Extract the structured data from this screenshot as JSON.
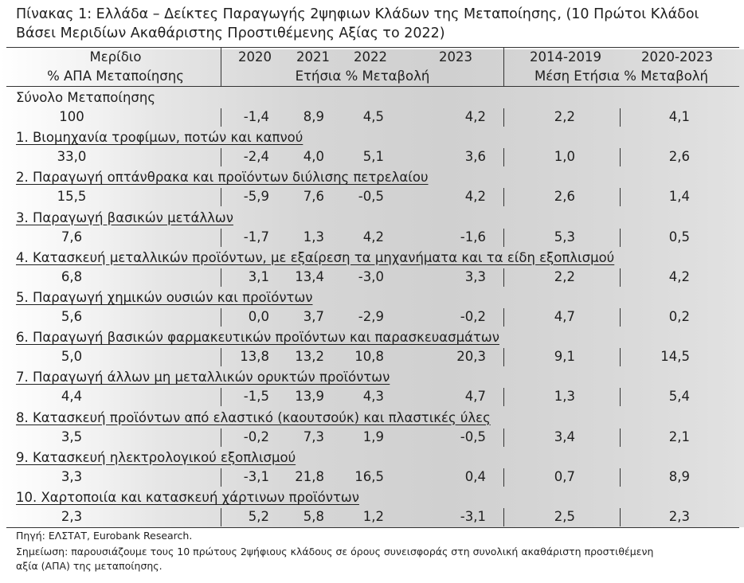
{
  "title": "Πίνακας 1: Ελλάδα – Δείκτες Παραγωγής 2ψηφιων Κλάδων της Μεταποίησης, (10 Πρώτοι Κλάδοι Βάσει Μεριδίων Ακαθάριστης Προστιθέμενης Αξίας το 2022)",
  "header": {
    "share_line1": "Μερίδιο",
    "share_line2": "% ΑΠΑ Μεταποίησης",
    "years": [
      "2020",
      "2021",
      "2022",
      "2023"
    ],
    "annual_label": "Ετήσια % Μεταβολή",
    "period1": "2014-2019",
    "period2": "2020-2023",
    "period_label": "Μέση Ετήσια % Μεταβολή"
  },
  "rows": [
    {
      "name": "Σύνολο Μεταποίησης",
      "share": "100",
      "y2020": "-1,4",
      "y2021": "8,9",
      "y2022": "4,5",
      "y2023": "4,2",
      "p1": "2,2",
      "p2": "4,1"
    },
    {
      "name": "1. Βιομηχανία τροφίμων, ποτών και καπνού",
      "share": "33,0",
      "y2020": "-2,4",
      "y2021": "4,0",
      "y2022": "5,1",
      "y2023": "3,6",
      "p1": "1,0",
      "p2": "2,6"
    },
    {
      "name": "2. Παραγωγή οπτάνθρακα και προϊόντων διύλισης πετρελαίου",
      "share": "15,5",
      "y2020": "-5,9",
      "y2021": "7,6",
      "y2022": "-0,5",
      "y2023": "4,2",
      "p1": "2,6",
      "p2": "1,4"
    },
    {
      "name": "3. Παραγωγή βασικών μετάλλων",
      "share": "7,6",
      "y2020": "-1,7",
      "y2021": "1,3",
      "y2022": "4,2",
      "y2023": "-1,6",
      "p1": "5,3",
      "p2": "0,5"
    },
    {
      "name": "4. Κατασκευή μεταλλικών προϊόντων, με εξαίρεση τα μηχανήματα και τα είδη εξοπλισμού",
      "share": "6,8",
      "y2020": "3,1",
      "y2021": "13,4",
      "y2022": "-3,0",
      "y2023": "3,3",
      "p1": "2,2",
      "p2": "4,2"
    },
    {
      "name": "5. Παραγωγή χημικών ουσιών και προϊόντων",
      "share": "5,6",
      "y2020": "0,0",
      "y2021": "3,7",
      "y2022": "-2,9",
      "y2023": "-0,2",
      "p1": "4,7",
      "p2": "0,2"
    },
    {
      "name": "6. Παραγωγή βασικών φαρμακευτικών προϊόντων και παρασκευασμάτων",
      "share": "5,0",
      "y2020": "13,8",
      "y2021": "13,2",
      "y2022": "10,8",
      "y2023": "20,3",
      "p1": "9,1",
      "p2": "14,5"
    },
    {
      "name": "7. Παραγωγή άλλων μη μεταλλικών ορυκτών προϊόντων",
      "share": "4,4",
      "y2020": "-1,5",
      "y2021": "13,9",
      "y2022": "4,3",
      "y2023": "4,7",
      "p1": "1,3",
      "p2": "5,4"
    },
    {
      "name": "8. Κατασκευή προϊόντων από ελαστικό (καουτσούκ) και πλαστικές ύλες",
      "share": "3,5",
      "y2020": "-0,2",
      "y2021": "7,3",
      "y2022": "1,9",
      "y2023": "-0,5",
      "p1": "3,4",
      "p2": "2,1"
    },
    {
      "name": "9. Κατασκευή ηλεκτρολογικού εξοπλισμού",
      "share": "3,3",
      "y2020": "-3,1",
      "y2021": "21,8",
      "y2022": "16,5",
      "y2023": "0,4",
      "p1": "0,7",
      "p2": "8,9"
    },
    {
      "name": "10. Χαρτοποιία και κατασκευή χάρτινων προϊόντων",
      "share": "2,3",
      "y2020": "5,2",
      "y2021": "5,8",
      "y2022": "1,2",
      "y2023": "-3,1",
      "p1": "2,5",
      "p2": "2,3"
    }
  ],
  "source": "Πηγή: ΕΛΣΤΑΤ, Eurobank Research.",
  "note_line1": "Σημείωση: παρουσιάζουμε τους 10 πρώτους 2ψήφιους κλάδους σε όρους συνεισφοράς στη συνολική ακαθάριστη προστιθέμενη",
  "note_line2": "αξία (ΑΠΑ) της μεταποίησης."
}
